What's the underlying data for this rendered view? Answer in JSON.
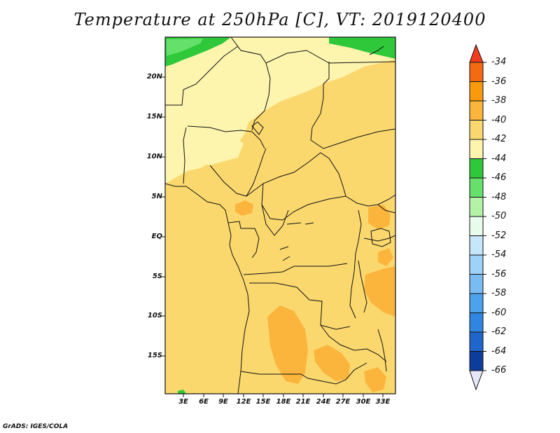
{
  "title": "Temperature at 250hPa [C], VT: 2019120400",
  "footer": "GrADS: IGES/COLA",
  "map": {
    "lat_labels": [
      "20N",
      "15N",
      "10N",
      "5N",
      "EQ",
      "5S",
      "10S",
      "15S"
    ],
    "lon_labels": [
      "3E",
      "6E",
      "9E",
      "12E",
      "15E",
      "18E",
      "21E",
      "24E",
      "27E",
      "30E",
      "33E"
    ]
  },
  "colorbar": {
    "labels": [
      "-34",
      "-36",
      "-38",
      "-40",
      "-42",
      "-44",
      "-46",
      "-48",
      "-50",
      "-52",
      "-54",
      "-56",
      "-58",
      "-60",
      "-62",
      "-64",
      "-66"
    ],
    "colors": {
      "top_cap": "#f23c1e",
      "bottom_cap": "#e6e6f8",
      "bins": [
        "#f46a10",
        "#f89a0c",
        "#fbb53c",
        "#fbd86e",
        "#fdf4ae",
        "#2ec83a",
        "#65e06a",
        "#b4f2a6",
        "#e8fcec",
        "#c6e6fa",
        "#9ed2f8",
        "#78bcf2",
        "#4ca2ec",
        "#2e86e0",
        "#1e66cc",
        "#0c3c9c"
      ]
    }
  },
  "colors": {
    "c40_42": "#fbd86e",
    "c42_44": "#fdf4ae",
    "c38_40": "#fbb53c",
    "c44_46": "#2ec83a",
    "c46_48": "#65e06a"
  }
}
